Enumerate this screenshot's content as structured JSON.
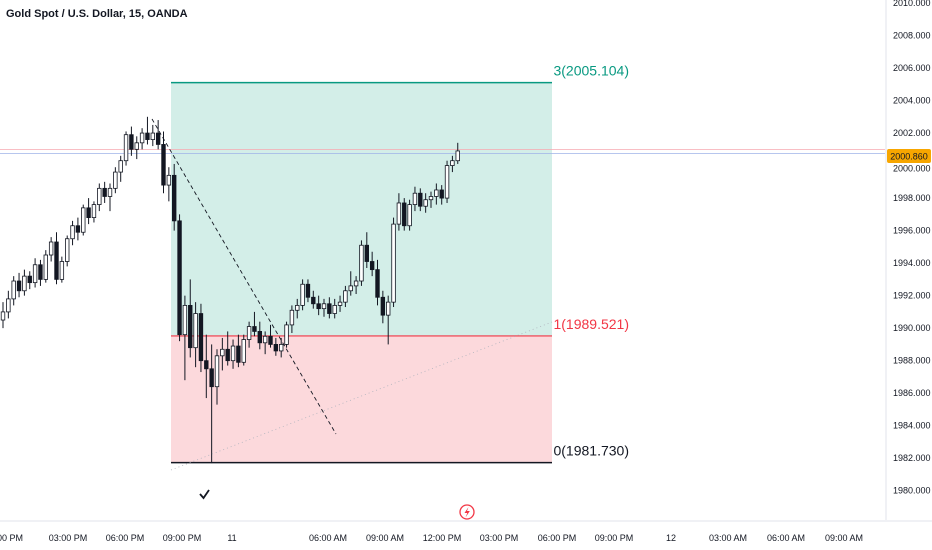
{
  "header": {
    "title": "Gold Spot / U.S. Dollar, 15, OANDA"
  },
  "price_badge": {
    "value": "2000.860",
    "color": "#f7a600"
  },
  "colors": {
    "up": "#131722",
    "down": "#131722",
    "target_line": "#089981",
    "target_fill": "#d3eee8",
    "stop_line": "#f23645",
    "stop_fill": "#fcd9dc",
    "entry_line": "#131722"
  },
  "levels": {
    "target": {
      "label": "3(2005.104)",
      "price": 2005.104
    },
    "entry": {
      "label": "1(1989.521)",
      "price": 1989.521
    },
    "stop": {
      "label": "0(1981.730)",
      "price": 1981.73
    }
  },
  "icons": {
    "checkmark": "checkmark-icon",
    "flash": "flash-icon"
  },
  "chart_data": {
    "type": "candlestick",
    "title": "Gold Spot / U.S. Dollar, 15, OANDA",
    "ylim": [
      1979,
      2010
    ],
    "y_ticks": [
      "1980.000",
      "1982.000",
      "1984.000",
      "1986.000",
      "1988.000",
      "1990.000",
      "1992.000",
      "1994.000",
      "1996.000",
      "1998.000",
      "2000.000",
      "2002.000",
      "2004.000",
      "2006.000",
      "2008.000",
      "2010.000"
    ],
    "x_ticks": [
      "00 PM",
      "03:00 PM",
      "06:00 PM",
      "09:00 PM",
      "11",
      "06:00 AM",
      "09:00 AM",
      "12:00 PM",
      "03:00 PM",
      "06:00 PM",
      "09:00 PM",
      "12",
      "03:00 AM",
      "06:00 AM",
      "09:00 AM"
    ],
    "last_price": 2000.86,
    "ohlc": [
      [
        1990.5,
        1991.6,
        1990.0,
        1991.0
      ],
      [
        1991.0,
        1992.3,
        1990.6,
        1991.8
      ],
      [
        1991.8,
        1993.2,
        1991.4,
        1992.9
      ],
      [
        1992.9,
        1993.4,
        1991.9,
        1992.3
      ],
      [
        1992.3,
        1993.6,
        1992.0,
        1993.2
      ],
      [
        1993.2,
        1993.5,
        1992.4,
        1992.8
      ],
      [
        1992.8,
        1994.3,
        1992.5,
        1993.9
      ],
      [
        1993.9,
        1994.2,
        1992.6,
        1993.0
      ],
      [
        1993.0,
        1994.8,
        1992.8,
        1994.5
      ],
      [
        1994.5,
        1995.6,
        1994.1,
        1995.3
      ],
      [
        1995.3,
        1995.9,
        1992.7,
        1993.0
      ],
      [
        1993.0,
        1994.4,
        1992.8,
        1994.1
      ],
      [
        1994.1,
        1995.7,
        1993.8,
        1995.5
      ],
      [
        1995.5,
        1996.6,
        1995.1,
        1996.3
      ],
      [
        1996.3,
        1996.8,
        1995.4,
        1995.9
      ],
      [
        1995.9,
        1997.6,
        1995.7,
        1997.4
      ],
      [
        1997.4,
        1998.0,
        1996.4,
        1996.8
      ],
      [
        1996.8,
        1997.8,
        1996.5,
        1997.6
      ],
      [
        1997.6,
        1998.9,
        1997.2,
        1998.6
      ],
      [
        1998.6,
        1999.0,
        1997.7,
        1998.1
      ],
      [
        1998.1,
        1998.9,
        1997.2,
        1998.6
      ],
      [
        1998.6,
        1999.9,
        1998.3,
        1999.6
      ],
      [
        1999.6,
        2000.6,
        1999.0,
        2000.3
      ],
      [
        2000.3,
        2002.1,
        2000.0,
        2001.9
      ],
      [
        2001.9,
        2002.4,
        2000.6,
        2001.0
      ],
      [
        2001.0,
        2001.8,
        2000.4,
        2001.4
      ],
      [
        2001.4,
        2002.3,
        2001.0,
        2002.0
      ],
      [
        2002.0,
        2003.0,
        2001.3,
        2001.6
      ],
      [
        2001.6,
        2002.5,
        2001.2,
        2002.0
      ],
      [
        2002.0,
        2002.8,
        2001.0,
        2001.3
      ],
      [
        2001.3,
        2002.1,
        1998.3,
        1998.8
      ],
      [
        1998.8,
        1999.9,
        1997.8,
        1999.4
      ],
      [
        1999.4,
        2000.1,
        1996.0,
        1996.6
      ],
      [
        1996.6,
        1997.0,
        1989.2,
        1989.6
      ],
      [
        1989.6,
        1992.0,
        1986.8,
        1991.4
      ],
      [
        1991.4,
        1993.0,
        1988.2,
        1988.8
      ],
      [
        1988.8,
        1991.6,
        1987.6,
        1990.9
      ],
      [
        1990.9,
        1991.5,
        1987.3,
        1988.0
      ],
      [
        1988.0,
        1989.6,
        1985.7,
        1987.5
      ],
      [
        1987.5,
        1989.0,
        1981.7,
        1986.4
      ],
      [
        1986.4,
        1988.7,
        1985.3,
        1988.3
      ],
      [
        1988.3,
        1989.4,
        1987.4,
        1988.7
      ],
      [
        1988.7,
        1989.8,
        1987.7,
        1988.0
      ],
      [
        1988.0,
        1989.3,
        1987.5,
        1988.9
      ],
      [
        1988.9,
        1989.6,
        1987.6,
        1987.9
      ],
      [
        1987.9,
        1989.6,
        1987.7,
        1989.3
      ],
      [
        1989.3,
        1990.4,
        1988.8,
        1990.1
      ],
      [
        1990.1,
        1991.0,
        1989.5,
        1989.8
      ],
      [
        1989.8,
        1990.4,
        1988.7,
        1989.1
      ],
      [
        1989.1,
        1989.8,
        1988.4,
        1989.5
      ],
      [
        1989.5,
        1990.2,
        1988.8,
        1989.0
      ],
      [
        1989.0,
        1989.4,
        1988.3,
        1988.6
      ],
      [
        1988.6,
        1989.4,
        1988.2,
        1989.0
      ],
      [
        1989.0,
        1990.4,
        1988.8,
        1990.2
      ],
      [
        1990.2,
        1991.4,
        1989.7,
        1991.1
      ],
      [
        1991.1,
        1991.8,
        1990.6,
        1991.4
      ],
      [
        1991.4,
        1993.0,
        1991.1,
        1992.7
      ],
      [
        1992.7,
        1993.0,
        1991.6,
        1991.9
      ],
      [
        1991.9,
        1992.3,
        1991.2,
        1991.5
      ],
      [
        1991.5,
        1992.0,
        1990.8,
        1991.2
      ],
      [
        1991.2,
        1991.8,
        1990.7,
        1991.5
      ],
      [
        1991.5,
        1991.9,
        1990.6,
        1990.9
      ],
      [
        1990.9,
        1991.8,
        1990.6,
        1991.4
      ],
      [
        1991.4,
        1992.0,
        1991.0,
        1991.6
      ],
      [
        1991.6,
        1992.6,
        1991.3,
        1992.3
      ],
      [
        1992.3,
        1993.5,
        1992.0,
        1992.6
      ],
      [
        1992.6,
        1993.2,
        1992.1,
        1992.9
      ],
      [
        1992.9,
        1995.4,
        1992.6,
        1995.1
      ],
      [
        1995.1,
        1995.9,
        1993.7,
        1994.1
      ],
      [
        1994.1,
        1994.7,
        1993.2,
        1993.6
      ],
      [
        1993.6,
        1994.2,
        1991.4,
        1991.9
      ],
      [
        1991.9,
        1992.3,
        1990.3,
        1990.8
      ],
      [
        1990.8,
        1992.0,
        1989.0,
        1991.6
      ],
      [
        1991.6,
        1996.8,
        1991.3,
        1996.4
      ],
      [
        1996.4,
        1998.3,
        1996.0,
        1997.7
      ],
      [
        1997.7,
        1998.0,
        1996.0,
        1996.3
      ],
      [
        1996.3,
        1997.9,
        1996.0,
        1997.6
      ],
      [
        1997.6,
        1998.7,
        1997.2,
        1998.3
      ],
      [
        1998.3,
        1998.6,
        1997.2,
        1997.5
      ],
      [
        1997.5,
        1998.3,
        1997.1,
        1997.9
      ],
      [
        1997.9,
        1998.4,
        1997.4,
        1998.1
      ],
      [
        1998.1,
        1998.9,
        1997.6,
        1998.5
      ],
      [
        1998.5,
        1998.8,
        1997.6,
        1998.0
      ],
      [
        1998.0,
        2000.3,
        1997.7,
        2000.0
      ],
      [
        2000.0,
        2000.6,
        1999.6,
        2000.3
      ],
      [
        2000.3,
        2001.4,
        2000.1,
        2000.9
      ]
    ]
  }
}
